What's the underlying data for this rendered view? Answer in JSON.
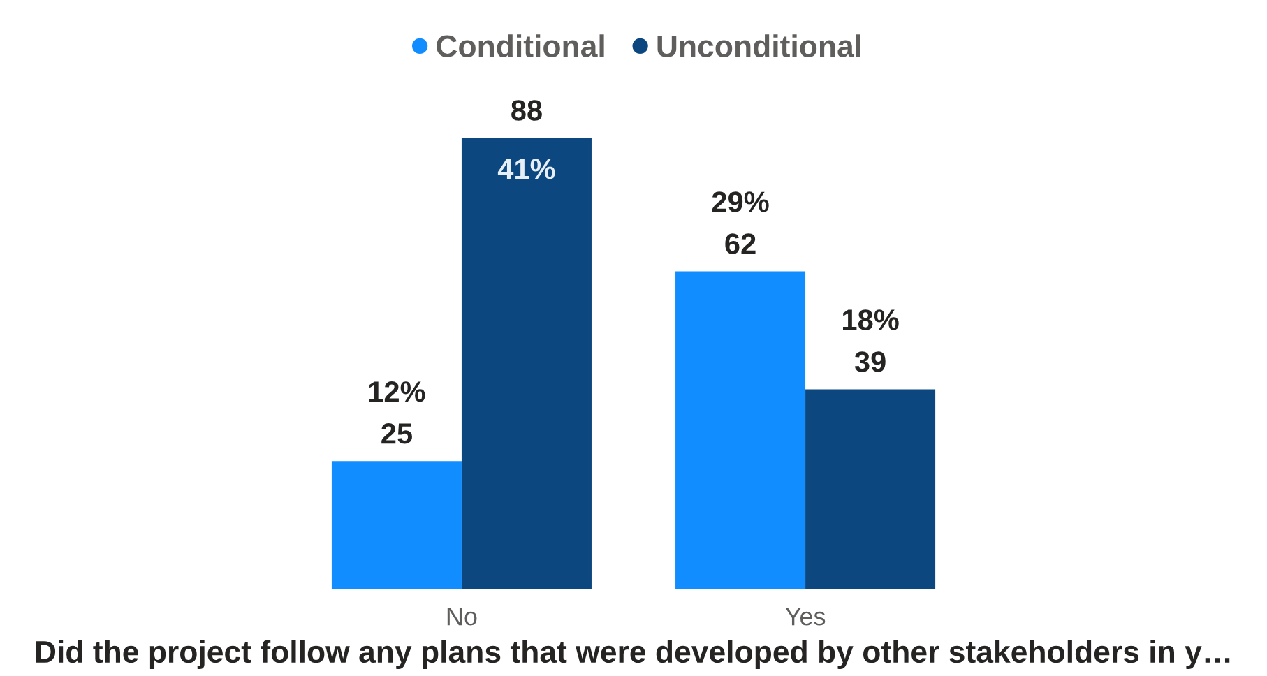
{
  "chart_data": {
    "type": "bar",
    "xlabel": "Did the project follow any plans that were developed by other stakeholders in y…",
    "categories": [
      "No",
      "Yes"
    ],
    "series": [
      {
        "name": "Conditional",
        "color": "#118dff",
        "values": [
          25,
          62
        ]
      },
      {
        "name": "Unconditional",
        "color": "#0c477f",
        "values": [
          88,
          39
        ]
      }
    ],
    "data_labels": true,
    "annotations": [
      {
        "text": "12%",
        "x": "No",
        "y": 25
      },
      {
        "text": "41%",
        "x": "No",
        "y": 88
      },
      {
        "text": "29%",
        "x": "Yes",
        "y": 62
      },
      {
        "text": "18%",
        "x": "Yes",
        "y": 39
      }
    ],
    "legend": "top"
  }
}
